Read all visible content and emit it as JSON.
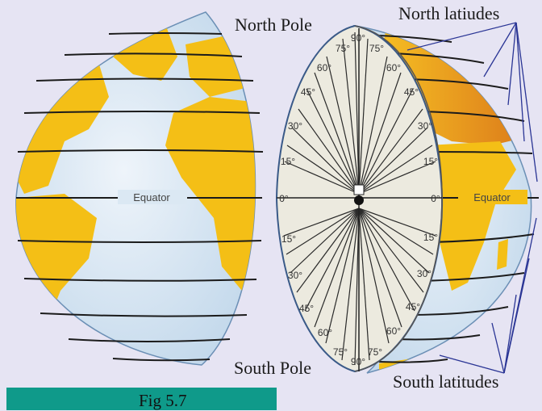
{
  "labels": {
    "north_pole": "North Pole",
    "south_pole": "South Pole",
    "north_latitudes": "North latiudes",
    "south_latitudes": "South latitudes",
    "equator": "Equator",
    "figure": "Fig 5.7"
  },
  "degree_labels": {
    "zero": "0°",
    "north": [
      "15°",
      "30°",
      "45°",
      "60°",
      "75°",
      "90°"
    ],
    "south": [
      "15°",
      "30°",
      "45°",
      "60°",
      "75°",
      "90°"
    ]
  },
  "colors": {
    "background": "#e6e4f3",
    "ocean": "#dbe8f3",
    "land": "#f4bf16",
    "land_dark": "#e98e1c",
    "cross_section": "#eceadf",
    "latitude_line": "#1b1b1b",
    "pointer_line": "#2a3595",
    "figure_bar": "#0f9a8a"
  }
}
